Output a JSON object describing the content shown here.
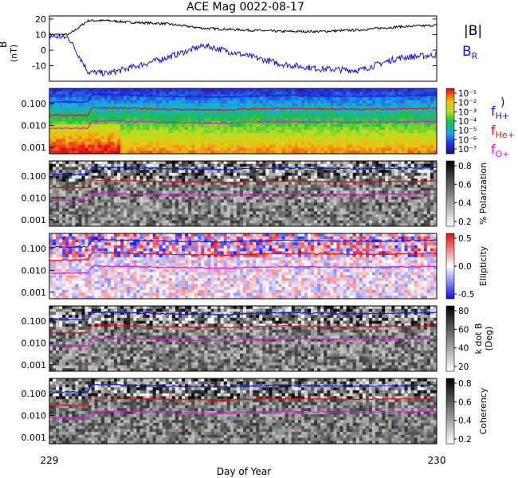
{
  "title": "ACE Mag 0022-08-17",
  "colors": {
    "H": "#0a1be0",
    "He": "#e01010",
    "O": "#e010e0",
    "B": "#000000",
    "BR": "#1414e6"
  },
  "xaxis": {
    "label": "Day of Year",
    "ticks": [
      "229",
      "230"
    ]
  },
  "chart_data": [
    {
      "type": "line",
      "panel": "magnetic-field",
      "ylabel": "B (nT)",
      "ylim": [
        -20,
        22
      ],
      "yticks": [
        -10,
        0,
        10,
        20
      ],
      "legend": [
        "|B|",
        "B_R"
      ],
      "x_day": [
        229.0,
        229.05,
        229.1,
        229.15,
        229.2,
        229.3,
        229.4,
        229.5,
        229.6,
        229.7,
        229.8,
        229.9,
        230.0
      ],
      "series": [
        {
          "name": "|B|",
          "values": [
            10,
            10,
            19,
            19,
            18,
            17,
            14,
            13,
            12,
            12,
            13,
            15,
            16
          ]
        },
        {
          "name": "B_R",
          "values": [
            9,
            8,
            -14,
            -15,
            -12,
            -5,
            3,
            -3,
            -9,
            -12,
            -13,
            -5,
            -3
          ]
        }
      ]
    },
    {
      "type": "heatmap",
      "panel": "power",
      "ylim": [
        0.0005,
        0.5
      ],
      "yticks": [
        "0.001",
        "0.010",
        "0.100"
      ],
      "colorbar_ticks": [
        "10⁻¹",
        "10⁻²",
        "10⁻³",
        "10⁻⁴",
        "10⁻⁵",
        "10⁻⁶",
        "10⁻⁷"
      ],
      "legend": [
        "f_H+",
        "f_He+",
        "f_O+"
      ]
    },
    {
      "type": "heatmap",
      "panel": "polarization",
      "ylim": [
        0.0005,
        0.5
      ],
      "yticks": [
        "0.001",
        "0.010",
        "0.100"
      ],
      "colorbar_label": "% Polarization",
      "colorbar_ticks": [
        "0.8",
        "0.6",
        "0.4",
        "0.2"
      ]
    },
    {
      "type": "heatmap",
      "panel": "ellipticity",
      "ylim": [
        0.0005,
        0.5
      ],
      "yticks": [
        "0.001",
        "0.010",
        "0.100"
      ],
      "colorbar_label": "Ellipticity",
      "colorbar_ticks": [
        "0.5",
        "0.0",
        "-0.5"
      ]
    },
    {
      "type": "heatmap",
      "panel": "kdotb",
      "ylim": [
        0.0005,
        0.5
      ],
      "yticks": [
        "0.001",
        "0.010",
        "0.100"
      ],
      "colorbar_label": "k dot B (Deg)",
      "colorbar_ticks": [
        "80",
        "60",
        "40",
        "20"
      ]
    },
    {
      "type": "heatmap",
      "panel": "coherency",
      "ylim": [
        0.0005,
        0.5
      ],
      "yticks": [
        "0.001",
        "0.010",
        "0.100"
      ],
      "colorbar_label": "Coherency",
      "colorbar_ticks": [
        "0.8",
        "0.6",
        "0.4",
        "0.2"
      ]
    }
  ],
  "gyro_lines": {
    "x_day": [
      229.0,
      229.1,
      229.11,
      229.2,
      229.3,
      229.4,
      229.47,
      229.5,
      229.6,
      229.7,
      229.8,
      229.9,
      230.0
    ],
    "f_H": [
      0.12,
      0.12,
      0.26,
      0.25,
      0.22,
      0.21,
      0.2,
      0.22,
      0.24,
      0.23,
      0.22,
      0.23,
      0.25
    ],
    "f_He": [
      0.03,
      0.03,
      0.065,
      0.062,
      0.055,
      0.052,
      0.05,
      0.055,
      0.06,
      0.058,
      0.055,
      0.058,
      0.062
    ],
    "f_O": [
      0.0075,
      0.0075,
      0.016,
      0.0155,
      0.014,
      0.013,
      0.0125,
      0.014,
      0.015,
      0.0145,
      0.014,
      0.0145,
      0.0155
    ]
  },
  "labels": {
    "fH": "f",
    "fH_sub": "H+",
    "fHe": "f",
    "fHe_sub": "He+",
    "fO": "f",
    "fO_sub": "O+",
    "B": "|B|",
    "BR": "B",
    "BR_sub": "R",
    "power_close": ")",
    "b_unit": "B",
    "b_unit2": "(nT)",
    "kdotb_1": "k dot B",
    "kdotb_2": "(Deg)"
  }
}
